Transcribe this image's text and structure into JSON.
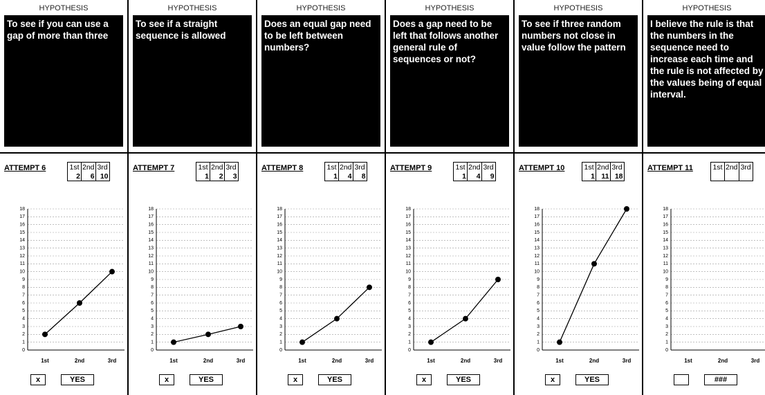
{
  "panels": [
    {
      "header": "HYPOTHESIS",
      "hypothesis": "To see if you can use a gap of more than three",
      "attempt": "ATTEMPT 6",
      "columns": [
        "1st",
        "2nd",
        "3rd"
      ],
      "entries": [
        2,
        6,
        10
      ],
      "chart": {
        "type": "line",
        "categories": [
          "1st",
          "2nd",
          "3rd"
        ],
        "values": [
          2,
          6,
          10
        ],
        "ylim": [
          0,
          18
        ],
        "yticks": [
          0,
          1,
          2,
          3,
          4,
          5,
          6,
          7,
          8,
          9,
          10,
          11,
          12,
          13,
          14,
          15,
          16,
          17,
          18
        ],
        "grid": true
      },
      "check": "x",
      "result": "YES"
    },
    {
      "header": "HYPOTHESIS",
      "hypothesis": "To see if a straight sequence is allowed",
      "attempt": "ATTEMPT 7",
      "columns": [
        "1st",
        "2nd",
        "3rd"
      ],
      "entries": [
        1,
        2,
        3
      ],
      "chart": {
        "type": "line",
        "categories": [
          "1st",
          "2nd",
          "3rd"
        ],
        "values": [
          1,
          2,
          3
        ],
        "ylim": [
          0,
          18
        ],
        "yticks": [
          0,
          1,
          2,
          3,
          4,
          5,
          6,
          7,
          8,
          9,
          10,
          11,
          12,
          13,
          14,
          15,
          16,
          17,
          18
        ],
        "grid": true
      },
      "check": "x",
      "result": "YES"
    },
    {
      "header": "HYPOTHESIS",
      "hypothesis": "Does an equal gap need to be left between numbers?",
      "attempt": "ATTEMPT 8",
      "columns": [
        "1st",
        "2nd",
        "3rd"
      ],
      "entries": [
        1,
        4,
        8
      ],
      "chart": {
        "type": "line",
        "categories": [
          "1st",
          "2nd",
          "3rd"
        ],
        "values": [
          1,
          4,
          8
        ],
        "ylim": [
          0,
          18
        ],
        "yticks": [
          0,
          1,
          2,
          3,
          4,
          5,
          6,
          7,
          8,
          9,
          10,
          11,
          12,
          13,
          14,
          15,
          16,
          17,
          18
        ],
        "grid": true
      },
      "check": "x",
      "result": "YES"
    },
    {
      "header": "HYPOTHESIS",
      "hypothesis": "Does a gap need to be left that follows another general rule of sequences or not?",
      "attempt": "ATTEMPT 9",
      "columns": [
        "1st",
        "2nd",
        "3rd"
      ],
      "entries": [
        1,
        4,
        9
      ],
      "chart": {
        "type": "line",
        "categories": [
          "1st",
          "2nd",
          "3rd"
        ],
        "values": [
          1,
          4,
          9
        ],
        "ylim": [
          0,
          18
        ],
        "yticks": [
          0,
          1,
          2,
          3,
          4,
          5,
          6,
          7,
          8,
          9,
          10,
          11,
          12,
          13,
          14,
          15,
          16,
          17,
          18
        ],
        "grid": true
      },
      "check": "x",
      "result": "YES"
    },
    {
      "header": "HYPOTHESIS",
      "hypothesis": "To see if three random numbers not close in value follow the pattern",
      "attempt": "ATTEMPT 10",
      "columns": [
        "1st",
        "2nd",
        "3rd"
      ],
      "entries": [
        1,
        11,
        18
      ],
      "chart": {
        "type": "line",
        "categories": [
          "1st",
          "2nd",
          "3rd"
        ],
        "values": [
          1,
          11,
          18
        ],
        "ylim": [
          0,
          18
        ],
        "yticks": [
          0,
          1,
          2,
          3,
          4,
          5,
          6,
          7,
          8,
          9,
          10,
          11,
          12,
          13,
          14,
          15,
          16,
          17,
          18
        ],
        "grid": true
      },
      "check": "x",
      "result": "YES"
    },
    {
      "header": "HYPOTHESIS",
      "hypothesis": "I believe the rule is that the numbers in the sequence need to increase each time and the rule is not affected by the values being of equal interval.",
      "attempt": "ATTEMPT 11",
      "columns": [
        "1st",
        "2nd",
        "3rd"
      ],
      "entries": [
        null,
        null,
        null
      ],
      "chart": {
        "type": "line",
        "categories": [
          "1st",
          "2nd",
          "3rd"
        ],
        "values": [
          null,
          null,
          null
        ],
        "ylim": [
          0,
          18
        ],
        "yticks": [
          0,
          1,
          2,
          3,
          4,
          5,
          6,
          7,
          8,
          9,
          10,
          11,
          12,
          13,
          14,
          15,
          16,
          17,
          18
        ],
        "grid": true
      },
      "result": "###"
    }
  ]
}
